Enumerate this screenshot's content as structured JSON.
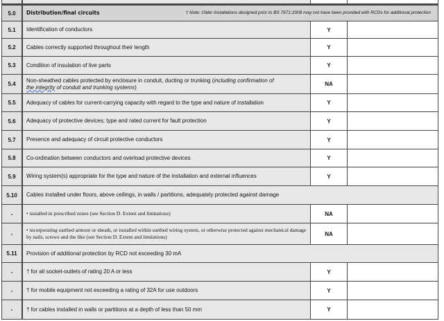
{
  "section": {
    "num": "5.0",
    "title": "Distribution/final circuits",
    "note": "† Note: Older installations designed prior to BS 7671:2008 may not have been provided with RCDs for additional protection"
  },
  "rows": [
    {
      "num": "5.1",
      "desc": "Identification of conductors",
      "value": "Y"
    },
    {
      "num": "5.2",
      "desc": "Cables correctly supported throughout their length",
      "value": "Y"
    },
    {
      "num": "5.3",
      "desc": "Condition of insulation of live parts",
      "value": "Y"
    },
    {
      "num": "5.4",
      "desc": "Non-sheathed cables protected by enclosure in conduit, ducting or trunking (",
      "desc_italic1": "including confirmation of",
      "desc_ul": "the integrity",
      "desc_italic2": " of conduit and trunking systems",
      ")": ")",
      "value": "NA"
    },
    {
      "num": "5.5",
      "desc": "Adequacy of cables for current-carrying capacity with regard to the type and nature of installation",
      "value": "Y"
    },
    {
      "num": "5.6",
      "desc": "Adequacy of protective devices; type and rated current for fault protection",
      "value": "Y"
    },
    {
      "num": "5.7",
      "desc": "Presence and adequacy of circuit protective conductors",
      "value": "Y"
    },
    {
      "num": "5.8",
      "desc": "Co-ordination between conductors and overload protective devices",
      "value": "Y"
    },
    {
      "num": "5.9",
      "desc": "Wiring system(s) appropriate for the type and nature of the installation and external influences",
      "value": "Y"
    },
    {
      "num": "5.10",
      "desc": "Cables installed under floors, above ceilings, in walls / partitions, adequately protected against damage"
    },
    {
      "num": "-",
      "desc": "• installed in prescribed zones (see Section D. Extent and limitations)",
      "value": "NA"
    },
    {
      "num": "-",
      "desc": "• incorporating earthed armour or sheath, or installed within earthed wiring system, or otherwise protected against mechanical damage by nails, screws and the like (see Section D. Extent and limitations)",
      "value": "NA"
    },
    {
      "num": "5.11",
      "desc": "Provision of additional protection by RCD not exceeding 30 mA"
    },
    {
      "num": "-",
      "desc": "† for all socket-outlets of rating 20 A or less",
      "value": "Y"
    },
    {
      "num": "-",
      "desc": "† for mobile equipment not exceeding a rating of 32A for use outdoors",
      "value": "Y"
    },
    {
      "num": "-",
      "desc": "† for cables installed in walls or partitions at a depth of less than 50 mm",
      "value": "Y"
    }
  ]
}
